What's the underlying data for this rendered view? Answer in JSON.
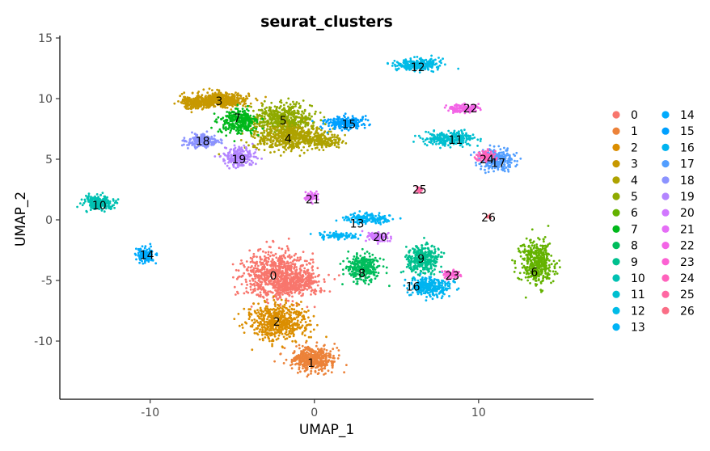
{
  "chart_data": {
    "type": "scatter",
    "title": "seurat_clusters",
    "xlabel": "UMAP_1",
    "ylabel": "UMAP_2",
    "xlim": [
      -15.5,
      17
    ],
    "ylim": [
      -14.8,
      15.2
    ],
    "xticks": [
      -10,
      0,
      10
    ],
    "xtick_labels": [
      "-10",
      "0",
      "10"
    ],
    "yticks": [
      -10,
      -5,
      0,
      5,
      10,
      15
    ],
    "ytick_labels": [
      "-10",
      "-5",
      "0",
      "5",
      "10",
      "15"
    ],
    "grid": false,
    "legend_placement": "right",
    "legend_columns": 2,
    "series": [
      {
        "name": "0",
        "color": "#F8766D",
        "label_at": [
          -2.5,
          -4.6
        ]
      },
      {
        "name": "1",
        "color": "#EC8239",
        "label_at": [
          -0.2,
          -11.8
        ]
      },
      {
        "name": "2",
        "color": "#DB8E00",
        "label_at": [
          -2.3,
          -8.4
        ]
      },
      {
        "name": "3",
        "color": "#C79800",
        "label_at": [
          -5.8,
          9.8
        ]
      },
      {
        "name": "4",
        "color": "#AEA200",
        "label_at": [
          -1.6,
          6.7
        ]
      },
      {
        "name": "5",
        "color": "#8FAA00",
        "label_at": [
          -1.9,
          8.2
        ]
      },
      {
        "name": "6",
        "color": "#64B200",
        "label_at": [
          13.4,
          -4.3
        ]
      },
      {
        "name": "7",
        "color": "#00B81B",
        "label_at": [
          -4.7,
          8.4
        ]
      },
      {
        "name": "8",
        "color": "#00BD5C",
        "label_at": [
          2.9,
          -4.4
        ]
      },
      {
        "name": "9",
        "color": "#00C08E",
        "label_at": [
          6.5,
          -3.2
        ]
      },
      {
        "name": "10",
        "color": "#00C1B2",
        "label_at": [
          -13.1,
          1.2
        ]
      },
      {
        "name": "11",
        "color": "#00BFD0",
        "label_at": [
          8.6,
          6.6
        ]
      },
      {
        "name": "12",
        "color": "#00BBE7",
        "label_at": [
          6.3,
          12.6
        ]
      },
      {
        "name": "13",
        "color": "#00B4F6",
        "label_at": [
          2.6,
          -0.3
        ]
      },
      {
        "name": "14",
        "color": "#00ABFD",
        "label_at": [
          -10.2,
          -2.9
        ]
      },
      {
        "name": "15",
        "color": "#00A0FF",
        "label_at": [
          2.1,
          7.9
        ]
      },
      {
        "name": "16",
        "color": "#00B4F0",
        "label_at": [
          6.0,
          -5.5
        ]
      },
      {
        "name": "17",
        "color": "#529EFF",
        "label_at": [
          11.2,
          4.7
        ]
      },
      {
        "name": "18",
        "color": "#8B93FF",
        "label_at": [
          -6.8,
          6.5
        ]
      },
      {
        "name": "19",
        "color": "#B385FF",
        "label_at": [
          -4.6,
          5.0
        ]
      },
      {
        "name": "20",
        "color": "#D177FF",
        "label_at": [
          4.0,
          -1.4
        ]
      },
      {
        "name": "21",
        "color": "#E56EF6",
        "label_at": [
          -0.1,
          1.7
        ]
      },
      {
        "name": "22",
        "color": "#F365E6",
        "label_at": [
          9.5,
          9.2
        ]
      },
      {
        "name": "23",
        "color": "#FC61D3",
        "label_at": [
          8.4,
          -4.6
        ]
      },
      {
        "name": "24",
        "color": "#FF62BC",
        "label_at": [
          10.5,
          5.0
        ]
      },
      {
        "name": "25",
        "color": "#FF67A3",
        "label_at": [
          6.4,
          2.5
        ]
      },
      {
        "name": "26",
        "color": "#FA6E86",
        "label_at": [
          10.6,
          0.2
        ]
      }
    ]
  }
}
